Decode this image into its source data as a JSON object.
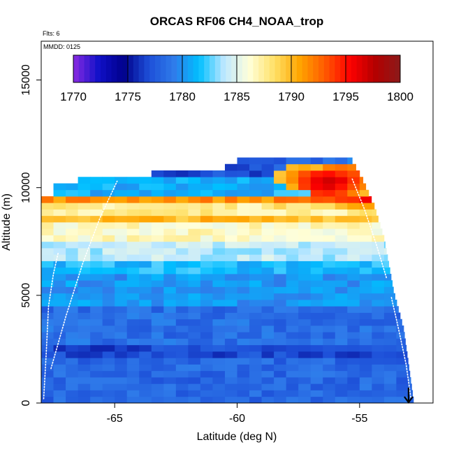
{
  "chart_data": {
    "type": "heatmap",
    "title": "ORCAS RF06 CH4_NOAA_trop",
    "annotations": {
      "flights": "Flts: 6",
      "date": "MMDD: 0125"
    },
    "xlabel": "Latitude (deg N)",
    "ylabel": "Altitude (m)",
    "xlim": [
      -68.0,
      -52.0
    ],
    "ylim": [
      0,
      16800
    ],
    "xticks": [
      -65,
      -60,
      -55
    ],
    "xtick_labels": [
      "-65",
      "-60",
      "-55"
    ],
    "yticks": [
      0,
      5000,
      10000,
      15000
    ],
    "ytick_labels": [
      "0",
      "5000",
      "10000",
      "15000"
    ],
    "colorbar": {
      "range": [
        1770,
        1800
      ],
      "ticks": [
        1770,
        1775,
        1780,
        1785,
        1790,
        1795,
        1800
      ],
      "tick_labels": [
        "1770",
        "1775",
        "1780",
        "1785",
        "1790",
        "1795",
        "1800"
      ],
      "colors": [
        "#8a2be2",
        "#1010c8",
        "#00008b",
        "#1d4fd8",
        "#2f7bea",
        "#00bfff",
        "#bfe8ff",
        "#ffffd9",
        "#ffe066",
        "#ffa500",
        "#ff5a00",
        "#ff0000",
        "#b40000",
        "#8b1a1a"
      ],
      "placement": "top, inside plot"
    },
    "grid_axes": {
      "x_step_deg": 0.5,
      "y_step_m": 300,
      "x_start": -68.0,
      "y_start": 0
    },
    "profile_bands": [
      {
        "alt_from": 0,
        "alt_to": 2000,
        "ch4": 1778.2
      },
      {
        "alt_from": 2000,
        "alt_to": 2600,
        "ch4": 1776.8
      },
      {
        "alt_from": 2600,
        "alt_to": 4500,
        "ch4": 1778.5
      },
      {
        "alt_from": 4500,
        "alt_to": 6000,
        "ch4": 1780.2
      },
      {
        "alt_from": 6000,
        "alt_to": 6600,
        "ch4": 1781.5
      },
      {
        "alt_from": 6600,
        "alt_to": 7500,
        "ch4": 1784.0
      },
      {
        "alt_from": 7500,
        "alt_to": 8200,
        "ch4": 1786.5
      },
      {
        "alt_from": 8200,
        "alt_to": 8700,
        "ch4": 1790.0
      },
      {
        "alt_from": 8700,
        "alt_to": 9200,
        "ch4": 1787.5
      },
      {
        "alt_from": 9200,
        "alt_to": 9600,
        "ch4": 1791.5
      },
      {
        "alt_from": 9600,
        "alt_to": 10300,
        "ch4": 1781.0
      },
      {
        "alt_from": 10300,
        "alt_to": 11300,
        "ch4": 1777.0
      }
    ],
    "hot_spots": [
      {
        "lat": -56.6,
        "alt": 10100,
        "ch4": 1797.5
      },
      {
        "lat": -56.0,
        "alt": 10200,
        "ch4": 1796.0
      },
      {
        "lat": -57.5,
        "alt": 10300,
        "ch4": 1793.5
      },
      {
        "lat": -55.5,
        "alt": 9900,
        "ch4": 1792.5
      }
    ],
    "coverage": {
      "left_edge_lat": -68.0,
      "right_edge_by_alt": [
        {
          "alt": 0,
          "lat": -52.8
        },
        {
          "alt": 3300,
          "lat": -53.2
        },
        {
          "alt": 5000,
          "lat": -53.6
        },
        {
          "alt": 7500,
          "lat": -54.0
        },
        {
          "alt": 9000,
          "lat": -54.4
        },
        {
          "alt": 10300,
          "lat": -54.9
        },
        {
          "alt": 11300,
          "lat": -55.4
        }
      ],
      "top_left_lat_by_alt": [
        {
          "alt": 9300,
          "lat": -68.0
        },
        {
          "alt": 9900,
          "lat": -67.7
        },
        {
          "alt": 10300,
          "lat": -66.4
        },
        {
          "alt": 10700,
          "lat": -61.0
        },
        {
          "alt": 11300,
          "lat": -59.5
        }
      ]
    },
    "flight_tracks": [
      {
        "name": "descent-left-1",
        "lat": [
          -67.9,
          -67.8,
          -67.7,
          -67.5,
          -67.3
        ],
        "alt": [
          200,
          2200,
          4500,
          6000,
          7000
        ]
      },
      {
        "name": "climb-left-2",
        "lat": [
          -67.6,
          -67.0,
          -66.3,
          -65.6,
          -64.9
        ],
        "alt": [
          1600,
          4000,
          6500,
          8600,
          10300
        ]
      },
      {
        "name": "descent-right-1",
        "lat": [
          -55.3,
          -54.8,
          -54.3,
          -53.9
        ],
        "alt": [
          10400,
          9000,
          7300,
          5800
        ]
      },
      {
        "name": "descent-right-2",
        "lat": [
          -53.7,
          -53.4,
          -53.1,
          -52.9
        ],
        "alt": [
          4900,
          3400,
          1800,
          200
        ]
      }
    ],
    "end_marker": {
      "lat": -53.0,
      "alt": 0,
      "symbol": "down-arrow"
    }
  }
}
